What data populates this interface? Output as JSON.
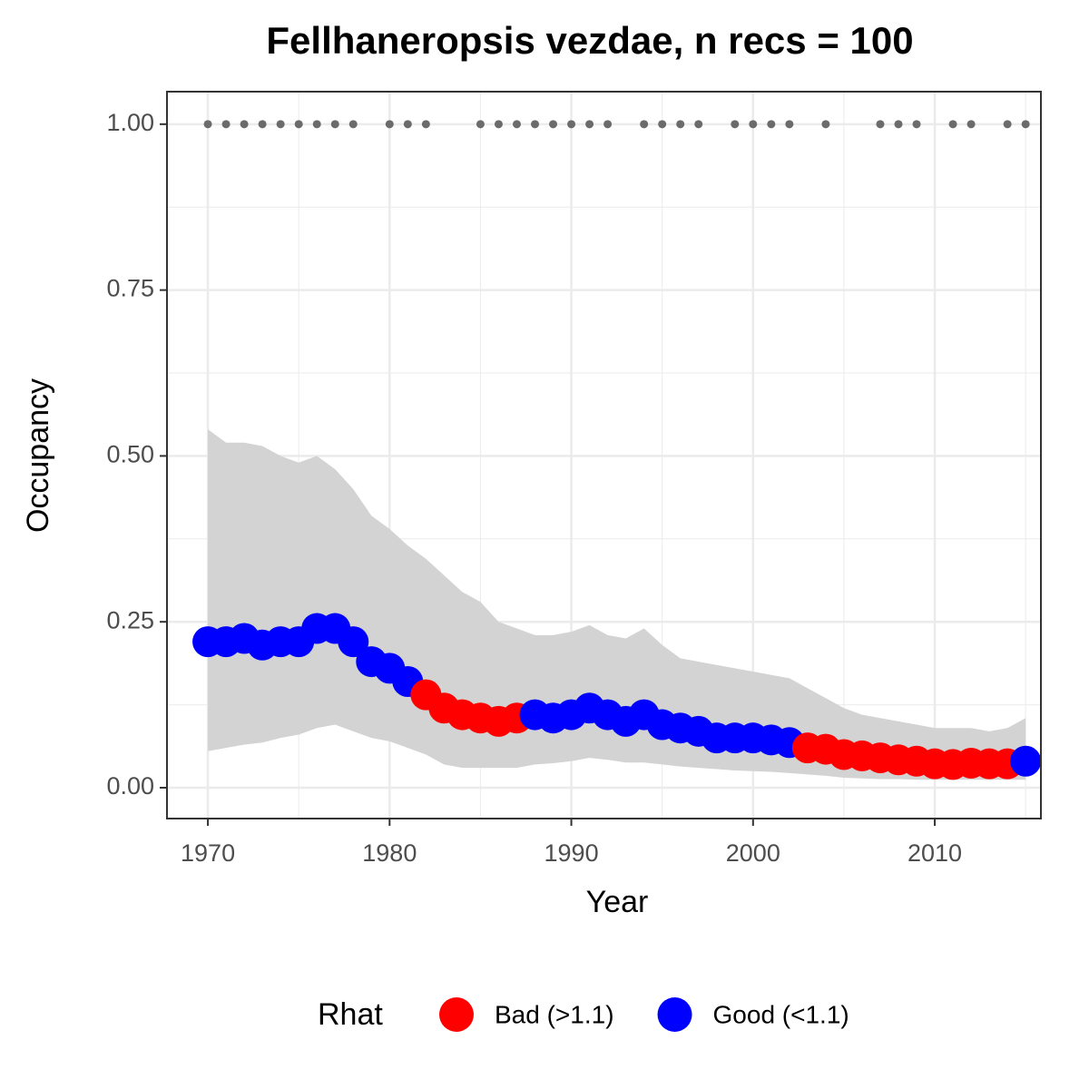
{
  "chart_data": {
    "type": "line",
    "title": "Fellhaneropsis vezdae, n recs = 100",
    "x_label": "Year",
    "y_label": "Occupancy",
    "legend_title": "Rhat",
    "legend_position": "bottom",
    "grid": true,
    "x": [
      1970,
      1971,
      1972,
      1973,
      1974,
      1975,
      1976,
      1977,
      1978,
      1979,
      1980,
      1981,
      1982,
      1983,
      1984,
      1985,
      1986,
      1987,
      1988,
      1989,
      1990,
      1991,
      1992,
      1993,
      1994,
      1995,
      1996,
      1997,
      1998,
      1999,
      2000,
      2001,
      2002,
      2003,
      2004,
      2005,
      2006,
      2007,
      2008,
      2009,
      2010,
      2011,
      2012,
      2013,
      2014,
      2015
    ],
    "values": [
      0.22,
      0.22,
      0.225,
      0.215,
      0.22,
      0.22,
      0.24,
      0.24,
      0.22,
      0.19,
      0.18,
      0.16,
      0.14,
      0.12,
      0.11,
      0.105,
      0.1,
      0.105,
      0.11,
      0.105,
      0.11,
      0.12,
      0.11,
      0.1,
      0.11,
      0.095,
      0.09,
      0.085,
      0.075,
      0.075,
      0.075,
      0.072,
      0.068,
      0.06,
      0.058,
      0.05,
      0.048,
      0.045,
      0.042,
      0.04,
      0.036,
      0.035,
      0.037,
      0.036,
      0.036,
      0.04
    ],
    "lower": [
      0.055,
      0.06,
      0.065,
      0.068,
      0.075,
      0.08,
      0.09,
      0.095,
      0.085,
      0.075,
      0.07,
      0.06,
      0.05,
      0.035,
      0.03,
      0.03,
      0.03,
      0.03,
      0.035,
      0.037,
      0.04,
      0.045,
      0.042,
      0.038,
      0.038,
      0.035,
      0.032,
      0.03,
      0.028,
      0.026,
      0.025,
      0.024,
      0.022,
      0.02,
      0.018,
      0.015,
      0.014,
      0.013,
      0.013,
      0.012,
      0.012,
      0.012,
      0.012,
      0.012,
      0.012,
      0.012
    ],
    "upper": [
      0.54,
      0.52,
      0.52,
      0.515,
      0.5,
      0.49,
      0.5,
      0.48,
      0.45,
      0.41,
      0.39,
      0.365,
      0.345,
      0.32,
      0.295,
      0.28,
      0.25,
      0.24,
      0.23,
      0.23,
      0.235,
      0.245,
      0.23,
      0.225,
      0.24,
      0.215,
      0.195,
      0.19,
      0.185,
      0.18,
      0.175,
      0.17,
      0.165,
      0.15,
      0.135,
      0.12,
      0.11,
      0.105,
      0.1,
      0.095,
      0.09,
      0.09,
      0.09,
      0.085,
      0.09,
      0.105
    ],
    "ribbon_color": "#d3d3d3",
    "rhat_levels": [
      {
        "name": "Bad (>1.1)",
        "color": "#ff0000"
      },
      {
        "name": "Good (<1.1)",
        "color": "#0000ff"
      }
    ],
    "rhat": [
      1,
      1,
      1,
      1,
      1,
      1,
      1,
      1,
      1,
      1,
      1,
      1,
      0,
      0,
      0,
      0,
      0,
      0,
      1,
      1,
      1,
      1,
      1,
      1,
      1,
      1,
      1,
      1,
      1,
      1,
      1,
      1,
      1,
      0,
      0,
      0,
      0,
      0,
      0,
      0,
      0,
      0,
      0,
      0,
      0,
      1
    ],
    "records": {
      "color": "#6b6b6b",
      "x": [
        1970,
        1971,
        1972,
        1973,
        1974,
        1975,
        1976,
        1977,
        1978,
        1980,
        1981,
        1982,
        1985,
        1986,
        1987,
        1988,
        1989,
        1990,
        1991,
        1992,
        1994,
        1995,
        1996,
        1997,
        1999,
        2000,
        2001,
        2002,
        2004,
        2007,
        2008,
        2009,
        2011,
        2012,
        2014,
        2015
      ],
      "values": [
        1,
        1,
        1,
        1,
        1,
        1,
        1,
        1,
        1,
        1,
        1,
        1,
        1,
        1,
        1,
        1,
        1,
        1,
        1,
        1,
        1,
        1,
        1,
        1,
        1,
        1,
        1,
        1,
        1,
        1,
        1,
        1,
        1,
        1,
        1,
        1
      ]
    },
    "xlim": [
      1967.75,
      2015.84
    ],
    "ylim": [
      -0.0465,
      1.049
    ],
    "xticks": [
      1970,
      1980,
      1990,
      2000,
      2010
    ],
    "yticks": [
      {
        "value": 0,
        "label": "0.00"
      },
      {
        "value": 0.25,
        "label": "0.25"
      },
      {
        "value": 0.5,
        "label": "0.50"
      },
      {
        "value": 0.75,
        "label": "0.75"
      },
      {
        "value": 1,
        "label": "1.00"
      }
    ],
    "minor_xticks": [
      1975,
      1985,
      1995,
      2005,
      2015
    ],
    "minor_yticks": [
      0.125,
      0.375,
      0.625,
      0.875
    ]
  }
}
